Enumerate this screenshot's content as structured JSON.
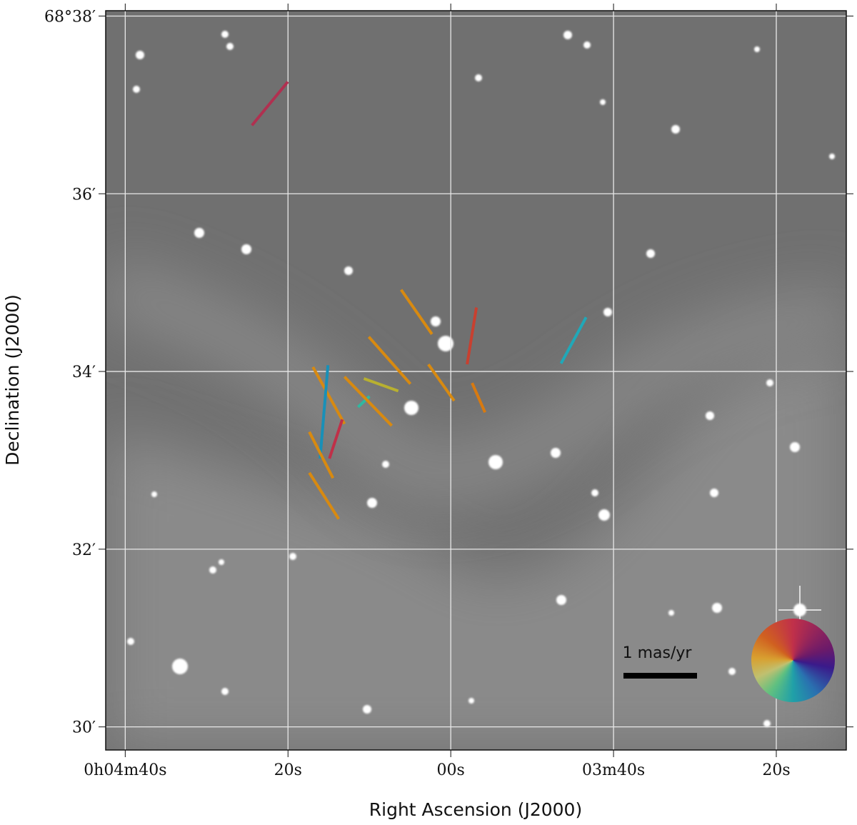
{
  "chart_data": {
    "type": "vector_field",
    "xlabel": "Right Ascension (J2000)",
    "ylabel": "Declination (J2000)",
    "xlim": [
      282.4,
      191.4
    ],
    "ylim": [
      29.74,
      38.06
    ],
    "xticks": [
      {
        "value": 280,
        "label": "0h04m40s"
      },
      {
        "value": 260,
        "label": "20s"
      },
      {
        "value": 240,
        "label": "00s"
      },
      {
        "value": 220,
        "label": "03m40s"
      },
      {
        "value": 200,
        "label": "20s"
      }
    ],
    "yticks": [
      {
        "value": 38,
        "label": "68°38′"
      },
      {
        "value": 36,
        "label": "36′"
      },
      {
        "value": 34,
        "label": "34′"
      },
      {
        "value": 32,
        "label": "32′"
      },
      {
        "value": 30,
        "label": "30′"
      }
    ],
    "grid": true,
    "scale_label": "1 mas/yr",
    "vectors": [
      {
        "ra": [
          264.43,
          260.02
        ],
        "dec": [
          36.77,
          37.26
        ],
        "color": "#b03050"
      },
      {
        "ra": [
          246.1,
          242.31
        ],
        "dec": [
          34.92,
          34.42
        ],
        "color": "#d88a10"
      },
      {
        "ra": [
          250.07,
          244.96
        ],
        "dec": [
          34.39,
          33.86
        ],
        "color": "#d88a10"
      },
      {
        "ra": [
          236.85,
          237.99
        ],
        "dec": [
          34.72,
          34.08
        ],
        "color": "#c84030"
      },
      {
        "ra": [
          223.37,
          226.45
        ],
        "dec": [
          34.61,
          34.09
        ],
        "color": "#20a8b8"
      },
      {
        "ra": [
          242.75,
          239.58
        ],
        "dec": [
          34.08,
          33.67
        ],
        "color": "#d88a10"
      },
      {
        "ra": [
          237.38,
          235.79
        ],
        "dec": [
          33.87,
          33.54
        ],
        "color": "#d87a10"
      },
      {
        "ra": [
          250.68,
          246.45
        ],
        "dec": [
          33.92,
          33.78
        ],
        "color": "#b8b030"
      },
      {
        "ra": [
          251.39,
          249.98
        ],
        "dec": [
          33.6,
          33.72
        ],
        "color": "#30b8a0"
      },
      {
        "ra": [
          256.94,
          253.06
        ],
        "dec": [
          34.05,
          33.41
        ],
        "color": "#d88a10"
      },
      {
        "ra": [
          253.06,
          247.25
        ],
        "dec": [
          33.94,
          33.39
        ],
        "color": "#d88a10"
      },
      {
        "ra": [
          255.09,
          256.06
        ],
        "dec": [
          34.07,
          33.02
        ],
        "color": "#1890b8"
      },
      {
        "ra": [
          253.33,
          254.91
        ],
        "dec": [
          33.46,
          33.02
        ],
        "color": "#c03048"
      },
      {
        "ra": [
          257.38,
          254.47
        ],
        "dec": [
          33.32,
          32.8
        ],
        "color": "#d88a10"
      },
      {
        "ra": [
          257.38,
          253.77
        ],
        "dec": [
          32.86,
          32.34
        ],
        "color": "#d88a10"
      }
    ]
  }
}
